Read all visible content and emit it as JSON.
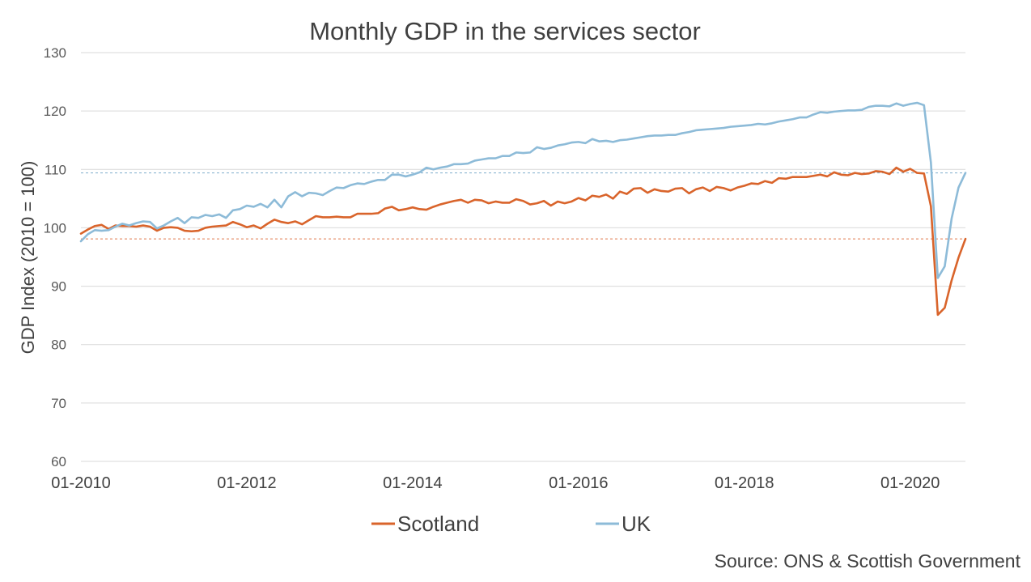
{
  "chart_data": {
    "type": "line",
    "title": "Monthly GDP in the services sector",
    "ylabel": "GDP Index (2010 = 100)",
    "xlabel": "",
    "ylim": [
      60,
      130
    ],
    "yticks": [
      60,
      70,
      80,
      90,
      100,
      110,
      120,
      130
    ],
    "x_tick_labels": [
      "01-2010",
      "01-2012",
      "01-2014",
      "01-2016",
      "01-2018",
      "01-2020"
    ],
    "x_start": "01-2010",
    "x_end": "08-2020",
    "grid": true,
    "legend_position": "bottom",
    "source": "Source: ONS & Scottish Government",
    "reference_lines": [
      {
        "series": "UK",
        "value": 109.4,
        "style": "dashed",
        "color": "#7faecd"
      },
      {
        "series": "Scotland",
        "value": 98.1,
        "style": "dashed",
        "color": "#e0774a"
      }
    ],
    "series": [
      {
        "name": "Scotland",
        "color": "#d9642b",
        "values": [
          99.0,
          99.7,
          100.3,
          100.5,
          99.8,
          100.4,
          100.3,
          100.3,
          100.2,
          100.4,
          100.2,
          99.5,
          100.0,
          100.1,
          100.0,
          99.5,
          99.4,
          99.5,
          100.0,
          100.2,
          100.3,
          100.4,
          101.0,
          100.6,
          100.1,
          100.4,
          99.9,
          100.7,
          101.4,
          101.0,
          100.8,
          101.1,
          100.6,
          101.3,
          102.0,
          101.8,
          101.8,
          101.9,
          101.8,
          101.8,
          102.4,
          102.4,
          102.4,
          102.5,
          103.3,
          103.6,
          103.0,
          103.2,
          103.5,
          103.2,
          103.1,
          103.6,
          104.0,
          104.3,
          104.6,
          104.8,
          104.3,
          104.8,
          104.7,
          104.2,
          104.5,
          104.3,
          104.3,
          104.9,
          104.6,
          104.0,
          104.2,
          104.6,
          103.8,
          104.5,
          104.2,
          104.5,
          105.1,
          104.7,
          105.5,
          105.3,
          105.7,
          105.0,
          106.2,
          105.8,
          106.7,
          106.8,
          106.0,
          106.6,
          106.3,
          106.2,
          106.7,
          106.8,
          105.9,
          106.6,
          106.9,
          106.3,
          107.0,
          106.8,
          106.4,
          106.9,
          107.2,
          107.6,
          107.5,
          108.0,
          107.7,
          108.5,
          108.4,
          108.7,
          108.7,
          108.7,
          108.9,
          109.1,
          108.8,
          109.5,
          109.1,
          109.0,
          109.4,
          109.2,
          109.3,
          109.7,
          109.6,
          109.2,
          110.3,
          109.6,
          110.1,
          109.4,
          109.3,
          103.7,
          85.1,
          86.3,
          91.0,
          94.9,
          98.1
        ]
      },
      {
        "name": "UK",
        "color": "#8dbbd8",
        "values": [
          97.7,
          98.9,
          99.6,
          99.5,
          99.6,
          100.2,
          100.7,
          100.4,
          100.8,
          101.1,
          101.0,
          99.9,
          100.4,
          101.1,
          101.7,
          100.8,
          101.8,
          101.7,
          102.2,
          102.0,
          102.3,
          101.7,
          103.0,
          103.2,
          103.8,
          103.6,
          104.1,
          103.5,
          104.8,
          103.5,
          105.4,
          106.1,
          105.4,
          106.0,
          105.9,
          105.6,
          106.3,
          106.9,
          106.8,
          107.3,
          107.6,
          107.5,
          107.9,
          108.2,
          108.2,
          109.1,
          109.1,
          108.8,
          109.1,
          109.5,
          110.3,
          110.0,
          110.3,
          110.5,
          110.9,
          110.9,
          111.0,
          111.5,
          111.7,
          111.9,
          111.9,
          112.3,
          112.3,
          112.9,
          112.8,
          112.9,
          113.8,
          113.5,
          113.7,
          114.1,
          114.3,
          114.6,
          114.7,
          114.5,
          115.2,
          114.8,
          114.9,
          114.7,
          115.0,
          115.1,
          115.3,
          115.5,
          115.7,
          115.8,
          115.8,
          115.9,
          115.9,
          116.2,
          116.4,
          116.7,
          116.8,
          116.9,
          117.0,
          117.1,
          117.3,
          117.4,
          117.5,
          117.6,
          117.8,
          117.7,
          117.9,
          118.2,
          118.4,
          118.6,
          118.9,
          118.9,
          119.4,
          119.8,
          119.7,
          119.9,
          120.0,
          120.1,
          120.1,
          120.2,
          120.7,
          120.9,
          120.9,
          120.8,
          121.3,
          120.9,
          121.2,
          121.4,
          121.0,
          111.2,
          91.4,
          93.4,
          101.6,
          106.9,
          109.4
        ]
      }
    ]
  }
}
